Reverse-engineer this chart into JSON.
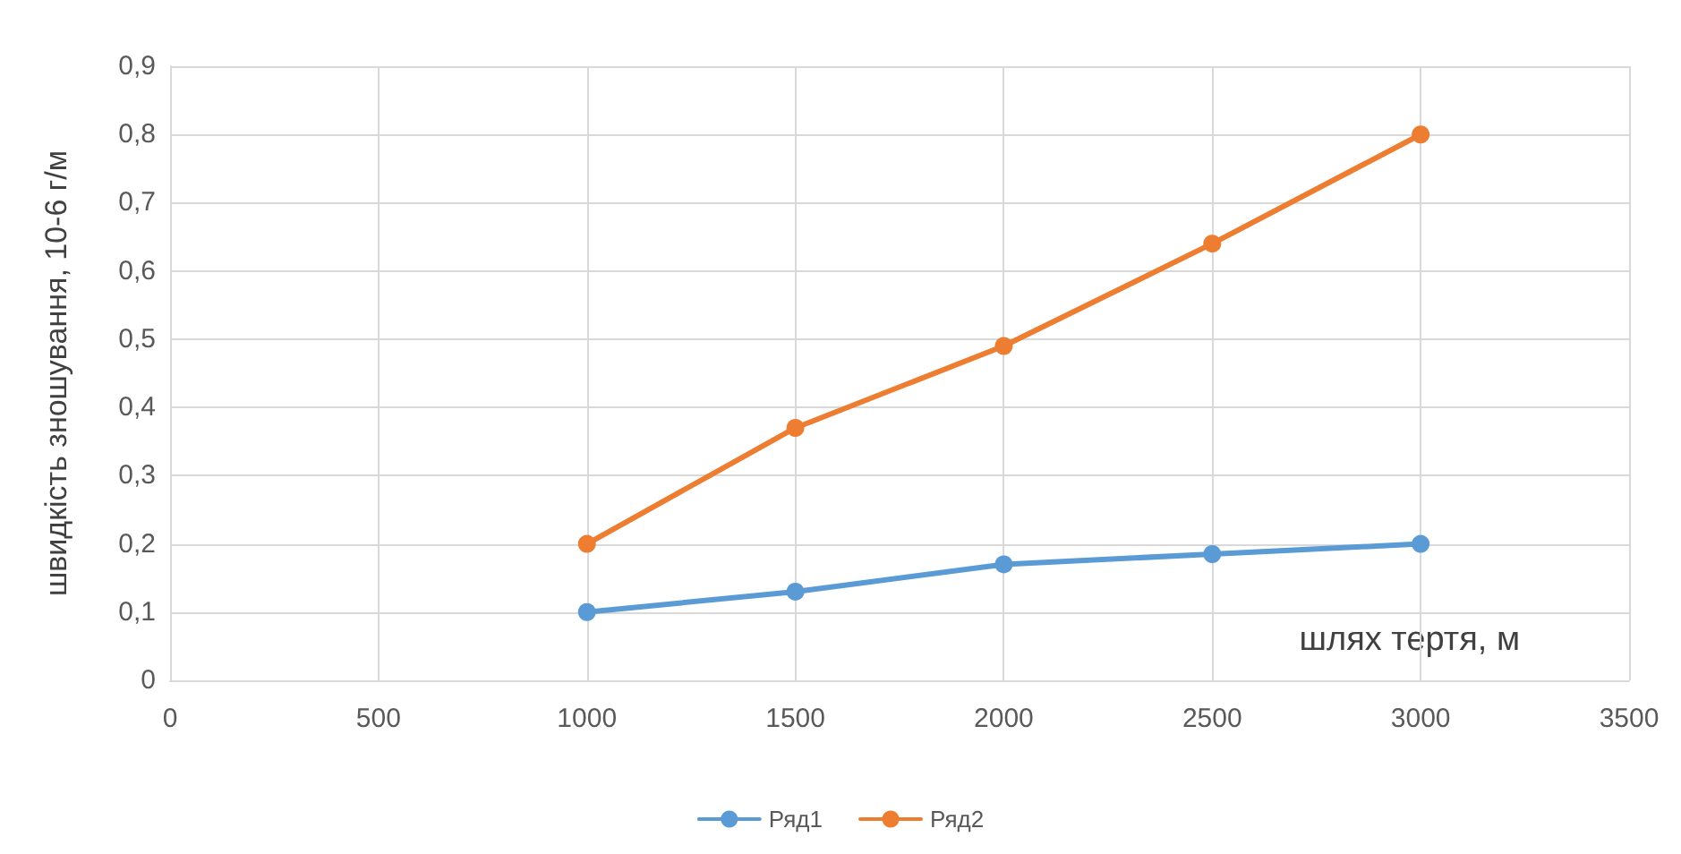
{
  "chart_data": {
    "type": "line",
    "xlabel": "шлях тертя, м",
    "ylabel": "швидкість зношування, 10-6 г/м",
    "x": [
      1000,
      1500,
      2000,
      2500,
      3000
    ],
    "series": [
      {
        "name": "Ряд1",
        "color": "#5b9bd5",
        "values": [
          0.1,
          0.13,
          0.17,
          0.185,
          0.2
        ]
      },
      {
        "name": "Ряд2",
        "color": "#ed7d31",
        "values": [
          0.2,
          0.37,
          0.49,
          0.64,
          0.8
        ]
      }
    ],
    "xlim": [
      0,
      3500
    ],
    "xticks": [
      0,
      500,
      1000,
      1500,
      2000,
      2500,
      3000,
      3500
    ],
    "ylim": [
      0,
      0.9
    ],
    "yticks": [
      0,
      {
        "value": 0.1,
        "label": "0,1"
      },
      {
        "value": 0.2,
        "label": "0,2"
      },
      {
        "value": 0.3,
        "label": "0,3"
      },
      {
        "value": 0.4,
        "label": "0,4"
      },
      {
        "value": 0.5,
        "label": "0,5"
      },
      {
        "value": 0.6,
        "label": "0,6"
      },
      {
        "value": 0.7,
        "label": "0,7"
      },
      {
        "value": 0.8,
        "label": "0,8"
      },
      {
        "value": 0.9,
        "label": "0,9"
      }
    ],
    "grid": true,
    "legend": "bottom",
    "marker": "circle",
    "line_style": "solid"
  }
}
